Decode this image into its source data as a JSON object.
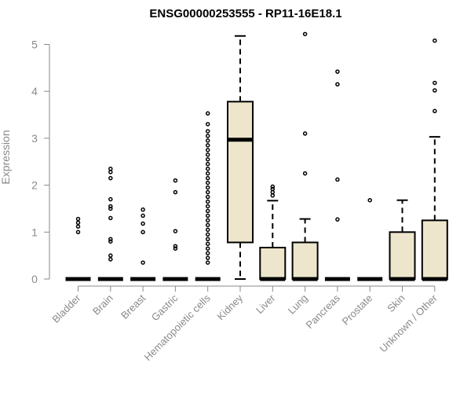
{
  "chart_data": {
    "type": "box",
    "title": "ENSG00000253555 - RP11-16E18.1",
    "ylabel": "Expression",
    "xlabel": "",
    "ylim": [
      0,
      5.2
    ],
    "yticks": [
      0,
      1,
      2,
      3,
      4,
      5
    ],
    "grid": false,
    "box_fill": "#ede6cc",
    "categories": [
      "Bladder",
      "Brain",
      "Breast",
      "Gastric",
      "Hematopoietic cells",
      "Kidney",
      "Liver",
      "Lung",
      "Pancreas",
      "Prostate",
      "Skin",
      "Unknown / Other"
    ],
    "boxes": [
      {
        "q1": 0,
        "median": 0,
        "q3": 0,
        "whisker_low": 0,
        "whisker_high": 0,
        "outliers": [
          1.0,
          1.12,
          1.2,
          1.28
        ]
      },
      {
        "q1": 0,
        "median": 0,
        "q3": 0,
        "whisker_low": 0,
        "whisker_high": 0,
        "outliers": [
          0.42,
          0.5,
          0.8,
          0.85,
          1.3,
          1.5,
          1.55,
          1.7,
          2.15,
          2.28,
          2.35
        ]
      },
      {
        "q1": 0,
        "median": 0,
        "q3": 0,
        "whisker_low": 0,
        "whisker_high": 0,
        "outliers": [
          0.35,
          1.0,
          1.18,
          1.35,
          1.48
        ]
      },
      {
        "q1": 0,
        "median": 0,
        "q3": 0,
        "whisker_low": 0,
        "whisker_high": 0,
        "outliers": [
          0.65,
          0.7,
          1.02,
          1.85,
          2.1
        ]
      },
      {
        "q1": 0,
        "median": 0,
        "q3": 0,
        "whisker_low": 0,
        "whisker_high": 0,
        "outliers": [
          0.35,
          0.45,
          0.55,
          0.65,
          0.75,
          0.85,
          0.95,
          1.05,
          1.15,
          1.25,
          1.35,
          1.45,
          1.55,
          1.65,
          1.75,
          1.85,
          1.95,
          2.05,
          2.15,
          2.25,
          2.35,
          2.45,
          2.55,
          2.65,
          2.75,
          2.85,
          2.95,
          3.05,
          3.15,
          3.3,
          3.53
        ]
      },
      {
        "q1": 0.78,
        "median": 2.97,
        "q3": 3.78,
        "whisker_low": 0,
        "whisker_high": 5.18,
        "outliers": []
      },
      {
        "q1": 0,
        "median": 0,
        "q3": 0.67,
        "whisker_low": 0,
        "whisker_high": 1.67,
        "outliers": [
          1.78,
          1.85,
          1.92,
          1.97
        ]
      },
      {
        "q1": 0,
        "median": 0,
        "q3": 0.78,
        "whisker_low": 0,
        "whisker_high": 1.28,
        "outliers": [
          2.25,
          3.1,
          5.22
        ]
      },
      {
        "q1": 0,
        "median": 0,
        "q3": 0,
        "whisker_low": 0,
        "whisker_high": 0,
        "outliers": [
          1.27,
          2.12,
          4.15,
          4.42
        ]
      },
      {
        "q1": 0,
        "median": 0,
        "q3": 0,
        "whisker_low": 0,
        "whisker_high": 0,
        "outliers": [
          1.68
        ]
      },
      {
        "q1": 0,
        "median": 0,
        "q3": 1.0,
        "whisker_low": 0,
        "whisker_high": 1.68,
        "outliers": []
      },
      {
        "q1": 0,
        "median": 0,
        "q3": 1.25,
        "whisker_low": 0,
        "whisker_high": 3.03,
        "outliers": [
          3.58,
          4.02,
          4.18,
          5.08
        ]
      }
    ]
  }
}
